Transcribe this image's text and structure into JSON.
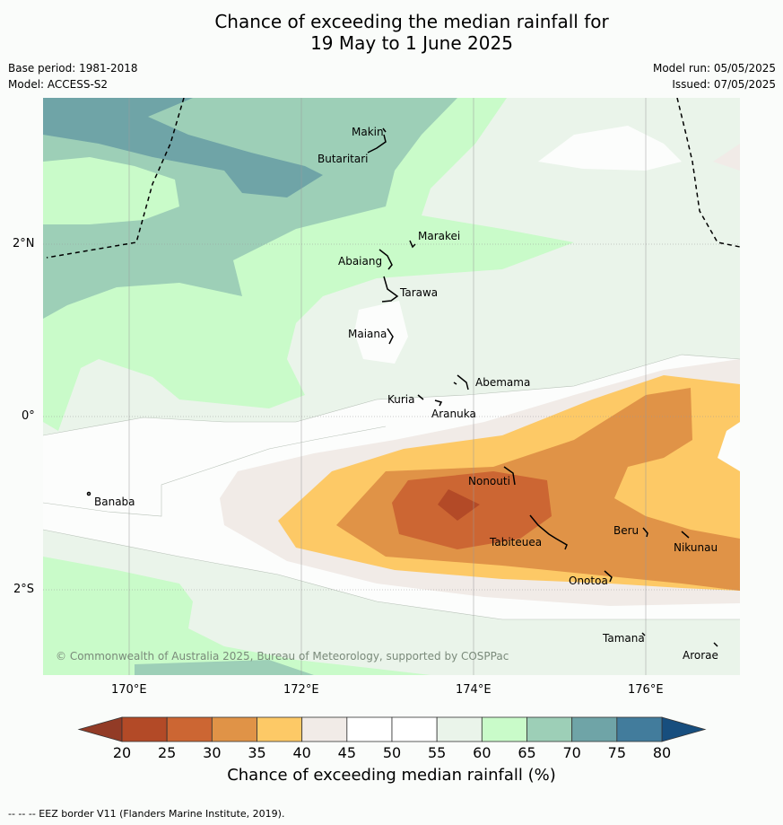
{
  "title_line1": "Chance of exceeding the median rainfall for",
  "title_line2": "19 May to 1 June 2025",
  "meta": {
    "base_period": "Base period: 1981-2018",
    "model": "Model: ACCESS-S2",
    "model_run": "Model run: 05/05/2025",
    "issued": "Issued: 07/05/2025"
  },
  "map": {
    "extent": {
      "lon": [
        169.0,
        177.1
      ],
      "lat": [
        -3.0,
        3.7
      ]
    },
    "lon_ticks": [
      "170°E",
      "172°E",
      "174°E",
      "176°E"
    ],
    "lat_ticks": [
      "2°N",
      "0°",
      "2°S"
    ],
    "islands": [
      "Makin",
      "Butaritari",
      "Marakei",
      "Abaiang",
      "Tarawa",
      "Maiana",
      "Abemama",
      "Kuria",
      "Aranuka",
      "Nonouti",
      "Tabiteuea",
      "Beru",
      "Nikunau",
      "Onotoa",
      "Tamana",
      "Arorae",
      "Banaba"
    ],
    "credit": "© Commonwealth of Australia 2025, Bureau of Meteorology, supported by COSPPac"
  },
  "colorbar": {
    "labels": [
      "20",
      "25",
      "30",
      "35",
      "40",
      "45",
      "50",
      "55",
      "60",
      "65",
      "70",
      "75",
      "80"
    ],
    "colors": [
      "#b34a27",
      "#cc6633",
      "#e09347",
      "#fdc966",
      "#f1ebe7",
      "#ffffff",
      "#ffffff",
      "#eaf4ea",
      "#c9fbc9",
      "#9dcfb7",
      "#6fa4a7",
      "#427c9c"
    ],
    "under_color": "#923b26",
    "over_color": "#174e7e",
    "title": "Chance of exceeding median rainfall (%)"
  },
  "footer": "-- -- -- EEZ border V11 (Flanders Marine Institute, 2019)."
}
